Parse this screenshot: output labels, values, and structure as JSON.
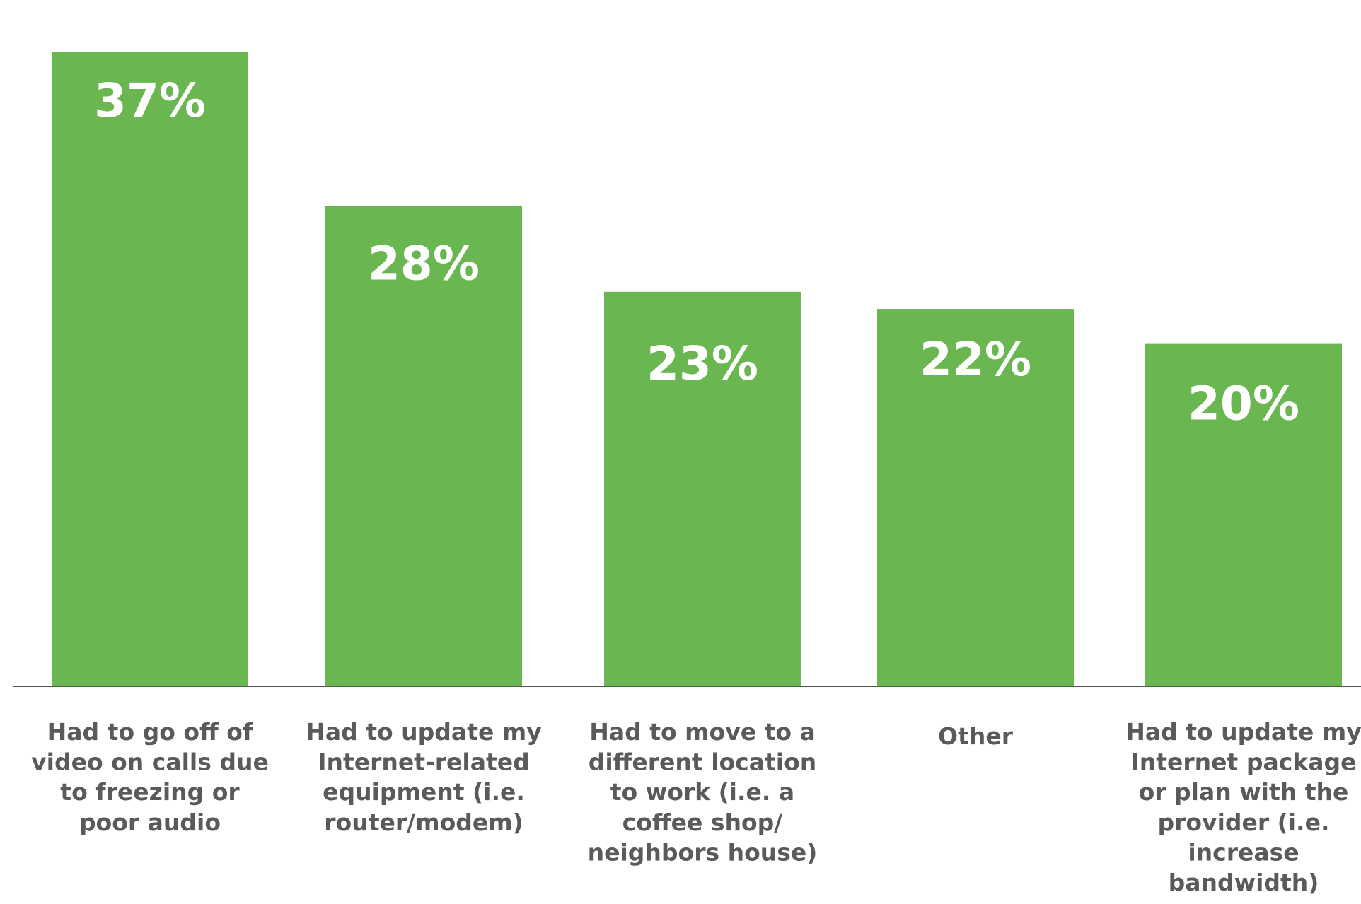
{
  "chart_data": {
    "type": "bar",
    "categories": [
      "Had to go off of video on calls due to freezing or poor audio",
      "Had to update my Internet-related equipment (i.e. router/modem)",
      "Had to move to a different location to work (i.e. a coffee shop/ neighbors house)",
      "Other",
      "Had to update my Internet package or plan with the provider (i.e. increase bandwidth)"
    ],
    "category_lines": [
      [
        "Had to go off of",
        "video on calls due",
        "to freezing or",
        "poor audio"
      ],
      [
        "Had to update my",
        "Internet-related",
        "equipment (i.e.",
        "router/modem)"
      ],
      [
        "Had to move to a",
        "different location",
        "to work (i.e. a",
        "coffee shop/",
        "neighbors house)"
      ],
      [
        "Other"
      ],
      [
        "Had to update my",
        "Internet package",
        "or plan with the",
        "provider (i.e.",
        "increase",
        "bandwidth)"
      ]
    ],
    "values": [
      37,
      28,
      23,
      22,
      20
    ],
    "value_labels": [
      "37%",
      "28%",
      "23%",
      "22%",
      "20%"
    ],
    "ylim": [
      0,
      40
    ],
    "grid": false,
    "legend": "none",
    "bar_color": "#6ab651",
    "axis_color": "#555555",
    "label_color": "#5a5a5a"
  }
}
